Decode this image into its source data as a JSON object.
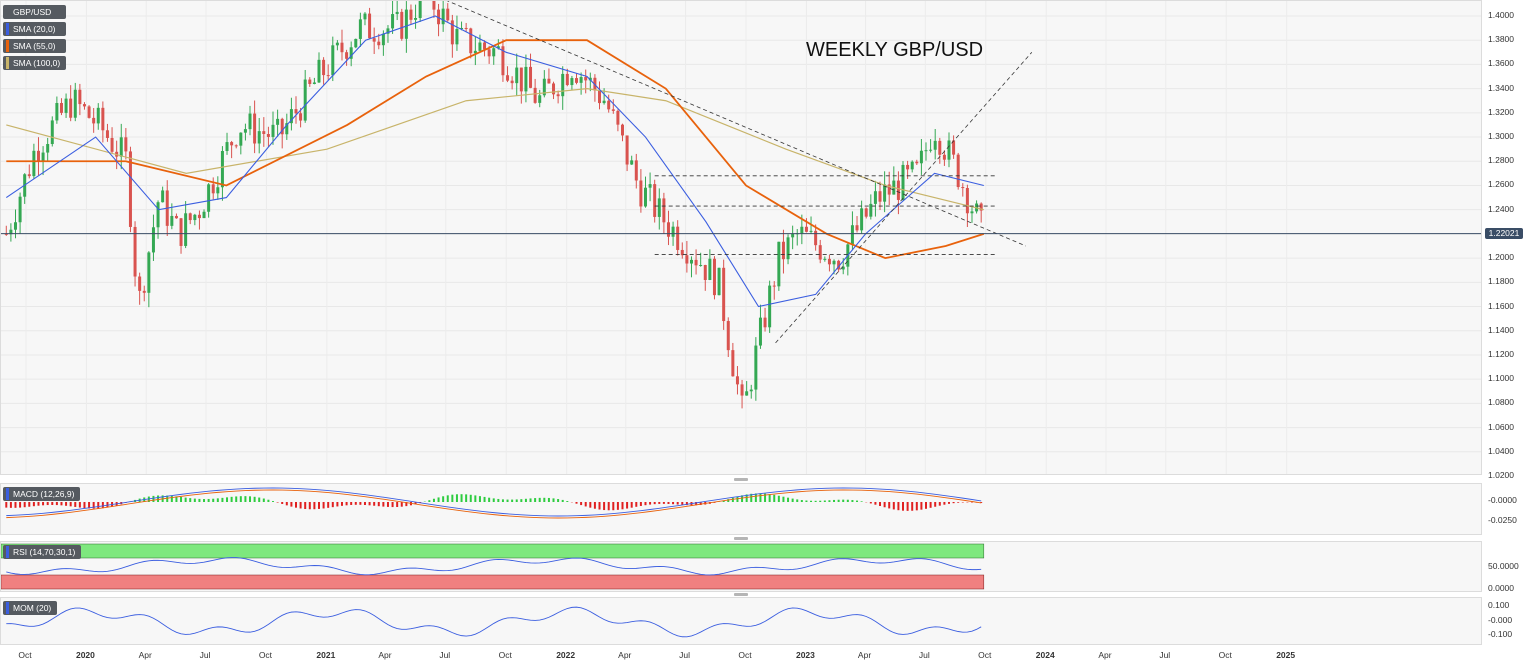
{
  "symbol": "GBP/USD",
  "chart_title": "WEEKLY GBP/USD",
  "legend": [
    {
      "label": "GBP/USD",
      "color": "#555a60"
    },
    {
      "label": "SMA (20,0)",
      "color": "#3b5ee0"
    },
    {
      "label": "SMA (55,0)",
      "color": "#e8620c"
    },
    {
      "label": "SMA (100,0)",
      "color": "#c8b46a"
    }
  ],
  "last_price": "1.22021",
  "colors": {
    "up": "#34a853",
    "down": "#d9534f",
    "sma20": "#3b5ee0",
    "sma55": "#e8620c",
    "sma100": "#c8b46a"
  },
  "price_axis": [
    "1.0200",
    "1.0400",
    "1.0600",
    "1.0800",
    "1.1000",
    "1.1200",
    "1.1400",
    "1.1600",
    "1.1800",
    "1.2000",
    "1.2200",
    "1.2400",
    "1.2600",
    "1.2800",
    "1.3000",
    "1.3200",
    "1.3400",
    "1.3600",
    "1.3800",
    "1.4000"
  ],
  "x_axis": [
    {
      "label": "Oct",
      "year": false
    },
    {
      "label": "2020",
      "year": true
    },
    {
      "label": "Apr",
      "year": false
    },
    {
      "label": "Jul",
      "year": false
    },
    {
      "label": "Oct",
      "year": false
    },
    {
      "label": "2021",
      "year": true
    },
    {
      "label": "Apr",
      "year": false
    },
    {
      "label": "Jul",
      "year": false
    },
    {
      "label": "Oct",
      "year": false
    },
    {
      "label": "2022",
      "year": true
    },
    {
      "label": "Apr",
      "year": false
    },
    {
      "label": "Jul",
      "year": false
    },
    {
      "label": "Oct",
      "year": false
    },
    {
      "label": "2023",
      "year": true
    },
    {
      "label": "Apr",
      "year": false
    },
    {
      "label": "Jul",
      "year": false
    },
    {
      "label": "Oct",
      "year": false
    },
    {
      "label": "2024",
      "year": true
    },
    {
      "label": "Apr",
      "year": false
    },
    {
      "label": "Jul",
      "year": false
    },
    {
      "label": "Oct",
      "year": false
    },
    {
      "label": "2025",
      "year": true
    }
  ],
  "macd": {
    "label": "MACD (12,26,9)",
    "axis": [
      "-0.0000",
      "-0.0250"
    ]
  },
  "rsi": {
    "label": "RSI (14,70,30,1)",
    "axis": [
      "50.0000",
      "0.0000"
    ]
  },
  "mom": {
    "label": "MOM (20)",
    "axis": [
      "0.100",
      "-0.000",
      "-0.100"
    ]
  },
  "chart_data": {
    "type": "candlestick",
    "title": "WEEKLY GBP/USD",
    "ylim": [
      1.02,
      1.41
    ],
    "x_range": [
      "2019-09",
      "2025-10"
    ],
    "close_path": [
      [
        "2019-09-01",
        1.22
      ],
      [
        "2019-10-15",
        1.29
      ],
      [
        "2019-12-10",
        1.33
      ],
      [
        "2020-01-20",
        1.31
      ],
      [
        "2020-03-02",
        1.28
      ],
      [
        "2020-03-20",
        1.16
      ],
      [
        "2020-04-20",
        1.25
      ],
      [
        "2020-05-20",
        1.22
      ],
      [
        "2020-06-20",
        1.24
      ],
      [
        "2020-08-20",
        1.31
      ],
      [
        "2020-10-20",
        1.3
      ],
      [
        "2020-12-20",
        1.35
      ],
      [
        "2021-02-20",
        1.39
      ],
      [
        "2021-04-20",
        1.39
      ],
      [
        "2021-06-01",
        1.42
      ],
      [
        "2021-07-20",
        1.38
      ],
      [
        "2021-09-20",
        1.37
      ],
      [
        "2021-11-20",
        1.33
      ],
      [
        "2022-01-10",
        1.36
      ],
      [
        "2022-03-01",
        1.33
      ],
      [
        "2022-04-20",
        1.26
      ],
      [
        "2022-06-01",
        1.23
      ],
      [
        "2022-07-20",
        1.2
      ],
      [
        "2022-08-20",
        1.18
      ],
      [
        "2022-09-26",
        1.07
      ],
      [
        "2022-10-20",
        1.13
      ],
      [
        "2022-11-20",
        1.2
      ],
      [
        "2022-12-20",
        1.22
      ],
      [
        "2023-02-20",
        1.2
      ],
      [
        "2023-04-20",
        1.25
      ],
      [
        "2023-06-20",
        1.27
      ],
      [
        "2023-07-14",
        1.31
      ],
      [
        "2023-08-20",
        1.27
      ],
      [
        "2023-09-20",
        1.23
      ],
      [
        "2023-09-28",
        1.22021
      ]
    ],
    "sma20_path": [
      [
        "2019-09-01",
        1.25
      ],
      [
        "2020-01-15",
        1.3
      ],
      [
        "2020-04-20",
        1.24
      ],
      [
        "2020-08-01",
        1.25
      ],
      [
        "2020-11-01",
        1.31
      ],
      [
        "2021-03-01",
        1.38
      ],
      [
        "2021-06-15",
        1.4
      ],
      [
        "2021-10-01",
        1.37
      ],
      [
        "2022-02-01",
        1.35
      ],
      [
        "2022-05-01",
        1.3
      ],
      [
        "2022-08-01",
        1.23
      ],
      [
        "2022-10-20",
        1.16
      ],
      [
        "2023-01-15",
        1.17
      ],
      [
        "2023-04-01",
        1.22
      ],
      [
        "2023-07-15",
        1.27
      ],
      [
        "2023-09-28",
        1.26
      ]
    ],
    "sma55_path": [
      [
        "2019-09-01",
        1.28
      ],
      [
        "2020-03-01",
        1.28
      ],
      [
        "2020-08-01",
        1.26
      ],
      [
        "2021-02-01",
        1.31
      ],
      [
        "2021-06-01",
        1.35
      ],
      [
        "2021-10-01",
        1.38
      ],
      [
        "2022-02-01",
        1.38
      ],
      [
        "2022-06-01",
        1.34
      ],
      [
        "2022-10-01",
        1.26
      ],
      [
        "2023-02-01",
        1.22
      ],
      [
        "2023-05-01",
        1.2
      ],
      [
        "2023-08-01",
        1.21
      ],
      [
        "2023-09-28",
        1.22
      ]
    ],
    "sma100_path": [
      [
        "2019-09-01",
        1.31
      ],
      [
        "2020-06-01",
        1.27
      ],
      [
        "2021-01-01",
        1.29
      ],
      [
        "2021-08-01",
        1.33
      ],
      [
        "2022-02-01",
        1.34
      ],
      [
        "2022-06-01",
        1.33
      ],
      [
        "2022-12-01",
        1.29
      ],
      [
        "2023-05-01",
        1.26
      ],
      [
        "2023-09-28",
        1.24
      ]
    ],
    "trendlines": [
      {
        "style": "dashed",
        "from": [
          "2021-06-01",
          1.42
        ],
        "to": [
          "2023-12-01",
          1.21
        ]
      },
      {
        "style": "dashed",
        "from": [
          "2022-11-15",
          1.13
        ],
        "to": [
          "2023-12-10",
          1.37
        ]
      }
    ],
    "horizontal_levels": [
      1.268,
      1.243,
      1.203
    ],
    "current_price_line": 1.22021
  }
}
